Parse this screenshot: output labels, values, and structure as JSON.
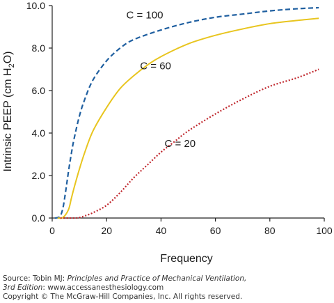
{
  "chart_data": {
    "type": "line",
    "xlabel": "Frequency",
    "ylabel": {
      "main": "Intrinsic PEEP (cm H",
      "sub": "2",
      "tail": "O)"
    },
    "xlim": [
      0,
      100
    ],
    "ylim": [
      0,
      10
    ],
    "xticks": [
      "0",
      "20",
      "40",
      "60",
      "80",
      "100"
    ],
    "yticks": [
      "0.0",
      "2.0",
      "4.0",
      "6.0",
      "8.0",
      "10.0"
    ],
    "grid": false,
    "series": [
      {
        "name": "C = 100",
        "color": "#1f5fa0",
        "style": "dashed",
        "x": [
          1,
          2,
          3,
          4,
          5,
          6,
          7,
          8,
          10,
          12,
          15,
          20,
          25,
          30,
          40,
          50,
          60,
          70,
          80,
          90,
          98
        ],
        "y": [
          0,
          0.02,
          0.1,
          0.5,
          1.3,
          2.2,
          3.0,
          3.7,
          4.8,
          5.6,
          6.5,
          7.4,
          8.0,
          8.4,
          8.85,
          9.2,
          9.45,
          9.6,
          9.75,
          9.85,
          9.9
        ]
      },
      {
        "name": "C = 60",
        "color": "#e8c51f",
        "style": "solid",
        "x": [
          2,
          4,
          6,
          7,
          8,
          10,
          12,
          15,
          20,
          25,
          30,
          35,
          40,
          50,
          60,
          70,
          80,
          90,
          98
        ],
        "y": [
          0,
          0.03,
          0.4,
          0.9,
          1.4,
          2.3,
          3.1,
          4.1,
          5.2,
          6.1,
          6.7,
          7.2,
          7.6,
          8.2,
          8.6,
          8.9,
          9.15,
          9.3,
          9.4
        ]
      },
      {
        "name": "C = 20",
        "color": "#c0272d",
        "style": "dotted",
        "x": [
          3,
          8,
          10,
          12,
          15,
          20,
          25,
          30,
          35,
          40,
          45,
          50,
          60,
          70,
          80,
          90,
          98
        ],
        "y": [
          0,
          0,
          0.02,
          0.1,
          0.25,
          0.6,
          1.2,
          1.9,
          2.5,
          3.1,
          3.6,
          4.1,
          4.9,
          5.6,
          6.2,
          6.6,
          7.0
        ]
      }
    ],
    "annotations": [
      {
        "text": "C = 100",
        "x": 34,
        "y": 9.4
      },
      {
        "text": "C = 60",
        "x": 38,
        "y": 7.0
      },
      {
        "text": "C = 20",
        "x": 47,
        "y": 3.35
      }
    ]
  },
  "credit": {
    "source_prefix": "Source: Tobin MJ: ",
    "source_title": "Principles and Practice of Mechanical Ventilation,",
    "edition": "3rd Edition",
    "edition_suffix": ": www.accessanesthesiology.com",
    "copyright": "Copyright © The McGraw-Hill Companies, Inc. All rights reserved."
  }
}
